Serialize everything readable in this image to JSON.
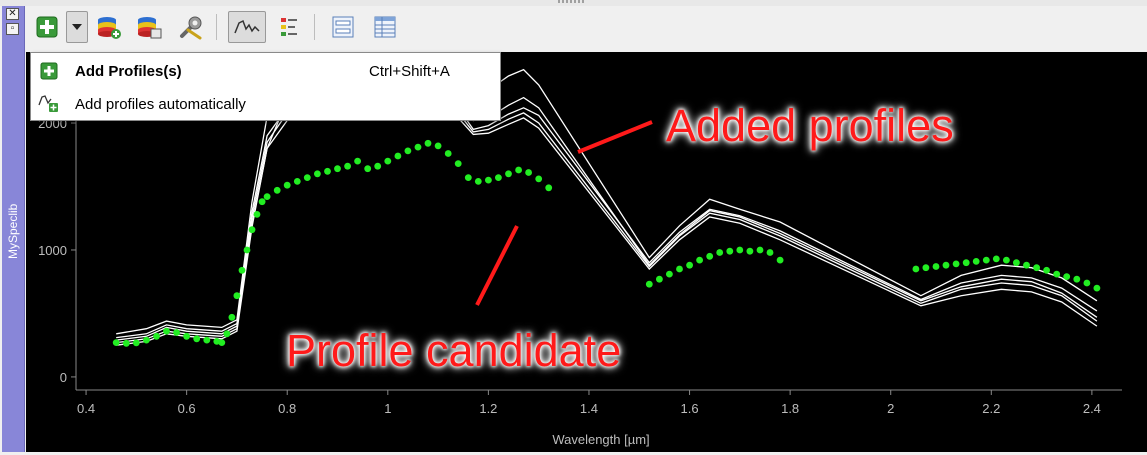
{
  "dock": {
    "title": "MySpeclib",
    "close_glyph": "✕",
    "float_glyph": "▫"
  },
  "toolbar": {
    "buttons": [
      {
        "name": "add-profiles-icon",
        "tooltip": "Add Profiles(s)"
      },
      {
        "name": "dropdown-arrow-icon"
      },
      {
        "name": "import-library-icon"
      },
      {
        "name": "export-library-icon"
      },
      {
        "name": "settings-wrench-icon"
      },
      {
        "name": "profile-plot-icon",
        "pressed": true
      },
      {
        "name": "legend-icon"
      },
      {
        "name": "form-view-icon"
      },
      {
        "name": "table-view-icon"
      }
    ]
  },
  "menu": {
    "items": [
      {
        "label": "Add Profiles(s)",
        "shortcut": "Ctrl+Shift+A"
      },
      {
        "label": "Add profiles automatically",
        "shortcut": ""
      }
    ]
  },
  "annotations": {
    "added_profiles": "Added profiles",
    "profile_candidate": "Profile candidate",
    "color": "#ff1a1a"
  },
  "chart_data": {
    "type": "line",
    "xlabel": "Wavelength [µm]",
    "ylabel": "",
    "xlim": [
      0.38,
      2.44
    ],
    "ylim": [
      -40,
      2520
    ],
    "xticks": [
      0.4,
      0.6,
      0.8,
      1,
      1.2,
      1.4,
      1.6,
      1.8,
      2,
      2.2,
      2.4
    ],
    "yticks": [
      0,
      1000,
      2000
    ],
    "background": "#000000",
    "series": [
      {
        "color": "#ffffff",
        "style": "line",
        "segments": [
          [
            [
              0.46,
              340
            ],
            [
              0.52,
              380
            ],
            [
              0.56,
              440
            ],
            [
              0.6,
              410
            ],
            [
              0.67,
              390
            ],
            [
              0.7,
              450
            ],
            [
              0.73,
              1380
            ],
            [
              0.76,
              2050
            ],
            [
              0.8,
              2300
            ],
            [
              0.86,
              2450
            ],
            [
              0.92,
              2480
            ],
            [
              1.0,
              2470
            ],
            [
              1.1,
              2420
            ],
            [
              1.14,
              2390
            ],
            [
              1.16,
              2250
            ],
            [
              1.2,
              2260
            ],
            [
              1.24,
              2370
            ],
            [
              1.27,
              2420
            ],
            [
              1.3,
              2300
            ],
            [
              1.52,
              940
            ],
            [
              1.58,
              1190
            ],
            [
              1.64,
              1400
            ],
            [
              1.7,
              1320
            ],
            [
              1.78,
              1220
            ],
            [
              2.06,
              640
            ],
            [
              2.14,
              800
            ],
            [
              2.22,
              880
            ],
            [
              2.28,
              860
            ],
            [
              2.34,
              780
            ],
            [
              2.41,
              600
            ]
          ],
          [
            [
              0.46,
              310
            ],
            [
              0.52,
              340
            ],
            [
              0.56,
              410
            ],
            [
              0.6,
              380
            ],
            [
              0.67,
              360
            ],
            [
              0.7,
              420
            ],
            [
              0.73,
              1300
            ],
            [
              0.76,
              1900
            ],
            [
              0.8,
              2120
            ],
            [
              0.86,
              2190
            ],
            [
              0.92,
              2200
            ],
            [
              1.0,
              2280
            ],
            [
              1.06,
              2300
            ],
            [
              1.1,
              2220
            ],
            [
              1.14,
              2120
            ],
            [
              1.17,
              1950
            ],
            [
              1.2,
              1980
            ],
            [
              1.24,
              2070
            ],
            [
              1.27,
              2120
            ],
            [
              1.3,
              2060
            ],
            [
              1.52,
              900
            ],
            [
              1.58,
              1140
            ],
            [
              1.64,
              1320
            ],
            [
              1.7,
              1270
            ],
            [
              1.78,
              1150
            ],
            [
              2.06,
              610
            ],
            [
              2.14,
              740
            ],
            [
              2.22,
              800
            ],
            [
              2.28,
              780
            ],
            [
              2.34,
              700
            ],
            [
              2.41,
              520
            ]
          ],
          [
            [
              0.46,
              290
            ],
            [
              0.52,
              320
            ],
            [
              0.56,
              390
            ],
            [
              0.6,
              360
            ],
            [
              0.67,
              340
            ],
            [
              0.7,
              400
            ],
            [
              0.73,
              1250
            ],
            [
              0.76,
              1850
            ],
            [
              0.8,
              2080
            ],
            [
              0.86,
              2140
            ],
            [
              0.92,
              2160
            ],
            [
              1.0,
              2230
            ],
            [
              1.06,
              2260
            ],
            [
              1.1,
              2180
            ],
            [
              1.14,
              2080
            ],
            [
              1.17,
              1930
            ],
            [
              1.2,
              1950
            ],
            [
              1.24,
              2030
            ],
            [
              1.27,
              2080
            ],
            [
              1.3,
              2000
            ],
            [
              1.52,
              870
            ],
            [
              1.58,
              1110
            ],
            [
              1.64,
              1290
            ],
            [
              1.7,
              1240
            ],
            [
              1.78,
              1110
            ],
            [
              2.06,
              580
            ],
            [
              2.14,
              690
            ],
            [
              2.22,
              740
            ],
            [
              2.28,
              720
            ],
            [
              2.34,
              640
            ],
            [
              2.41,
              440
            ]
          ],
          [
            [
              0.46,
              270
            ],
            [
              0.52,
              300
            ],
            [
              0.56,
              360
            ],
            [
              0.6,
              340
            ],
            [
              0.67,
              320
            ],
            [
              0.7,
              380
            ],
            [
              0.73,
              1200
            ],
            [
              0.76,
              1800
            ],
            [
              0.8,
              2020
            ],
            [
              0.86,
              2090
            ],
            [
              0.92,
              2100
            ],
            [
              1.0,
              2180
            ],
            [
              1.06,
              2200
            ],
            [
              1.1,
              2140
            ],
            [
              1.14,
              2040
            ],
            [
              1.17,
              1910
            ],
            [
              1.2,
              1920
            ],
            [
              1.24,
              1990
            ],
            [
              1.27,
              2040
            ],
            [
              1.3,
              1960
            ],
            [
              1.52,
              850
            ],
            [
              1.58,
              1080
            ],
            [
              1.64,
              1260
            ],
            [
              1.7,
              1210
            ],
            [
              1.78,
              1080
            ],
            [
              2.06,
              560
            ],
            [
              2.14,
              640
            ],
            [
              2.22,
              690
            ],
            [
              2.28,
              670
            ],
            [
              2.34,
              590
            ],
            [
              2.41,
              400
            ]
          ],
          [
            [
              0.46,
              250
            ],
            [
              0.52,
              280
            ],
            [
              0.56,
              340
            ],
            [
              0.6,
              320
            ],
            [
              0.67,
              300
            ],
            [
              0.7,
              360
            ],
            [
              0.73,
              1180
            ],
            [
              0.76,
              1800
            ],
            [
              0.8,
              2180
            ],
            [
              0.86,
              2280
            ],
            [
              0.92,
              2300
            ],
            [
              1.0,
              2360
            ],
            [
              1.06,
              2380
            ],
            [
              1.1,
              2300
            ],
            [
              1.14,
              2200
            ],
            [
              1.17,
              2020
            ],
            [
              1.2,
              2040
            ],
            [
              1.24,
              2140
            ],
            [
              1.27,
              2200
            ],
            [
              1.3,
              2120
            ],
            [
              1.52,
              880
            ],
            [
              1.58,
              1120
            ],
            [
              1.64,
              1310
            ],
            [
              1.7,
              1260
            ],
            [
              1.78,
              1130
            ],
            [
              2.06,
              600
            ],
            [
              2.14,
              710
            ],
            [
              2.22,
              770
            ],
            [
              2.28,
              750
            ],
            [
              2.34,
              660
            ],
            [
              2.41,
              470
            ]
          ]
        ]
      },
      {
        "color": "#22ee22",
        "style": "dots",
        "segments": [
          [
            [
              0.46,
              270
            ],
            [
              0.48,
              265
            ],
            [
              0.5,
              268
            ],
            [
              0.52,
              290
            ],
            [
              0.54,
              320
            ],
            [
              0.56,
              360
            ],
            [
              0.58,
              350
            ],
            [
              0.6,
              320
            ],
            [
              0.62,
              300
            ],
            [
              0.64,
              290
            ],
            [
              0.66,
              280
            ],
            [
              0.67,
              270
            ],
            [
              0.68,
              340
            ],
            [
              0.69,
              470
            ],
            [
              0.7,
              640
            ],
            [
              0.71,
              840
            ],
            [
              0.72,
              1000
            ],
            [
              0.73,
              1160
            ],
            [
              0.74,
              1280
            ],
            [
              0.75,
              1380
            ],
            [
              0.76,
              1420
            ],
            [
              0.78,
              1470
            ],
            [
              0.8,
              1510
            ],
            [
              0.82,
              1540
            ],
            [
              0.84,
              1570
            ],
            [
              0.86,
              1600
            ],
            [
              0.88,
              1620
            ],
            [
              0.9,
              1640
            ],
            [
              0.92,
              1660
            ],
            [
              0.94,
              1700
            ],
            [
              0.96,
              1640
            ],
            [
              0.98,
              1660
            ],
            [
              1.0,
              1700
            ],
            [
              1.02,
              1740
            ],
            [
              1.04,
              1780
            ],
            [
              1.06,
              1810
            ],
            [
              1.08,
              1840
            ],
            [
              1.1,
              1820
            ],
            [
              1.12,
              1760
            ],
            [
              1.14,
              1680
            ],
            [
              1.16,
              1570
            ],
            [
              1.18,
              1540
            ],
            [
              1.2,
              1550
            ],
            [
              1.22,
              1570
            ],
            [
              1.24,
              1600
            ],
            [
              1.26,
              1630
            ],
            [
              1.28,
              1610
            ],
            [
              1.3,
              1560
            ],
            [
              1.32,
              1490
            ]
          ],
          [
            [
              1.52,
              730
            ],
            [
              1.54,
              770
            ],
            [
              1.56,
              810
            ],
            [
              1.58,
              850
            ],
            [
              1.6,
              880
            ],
            [
              1.62,
              920
            ],
            [
              1.64,
              950
            ],
            [
              1.66,
              980
            ],
            [
              1.68,
              990
            ],
            [
              1.7,
              1000
            ],
            [
              1.72,
              990
            ],
            [
              1.74,
              1000
            ],
            [
              1.76,
              980
            ],
            [
              1.78,
              920
            ]
          ],
          [
            [
              2.05,
              850
            ],
            [
              2.07,
              860
            ],
            [
              2.09,
              870
            ],
            [
              2.11,
              880
            ],
            [
              2.13,
              890
            ],
            [
              2.15,
              900
            ],
            [
              2.17,
              910
            ],
            [
              2.19,
              920
            ],
            [
              2.21,
              930
            ],
            [
              2.23,
              920
            ],
            [
              2.25,
              900
            ],
            [
              2.27,
              880
            ],
            [
              2.29,
              860
            ],
            [
              2.31,
              840
            ],
            [
              2.33,
              810
            ],
            [
              2.35,
              790
            ],
            [
              2.37,
              770
            ],
            [
              2.39,
              740
            ],
            [
              2.41,
              700
            ]
          ]
        ]
      }
    ]
  }
}
